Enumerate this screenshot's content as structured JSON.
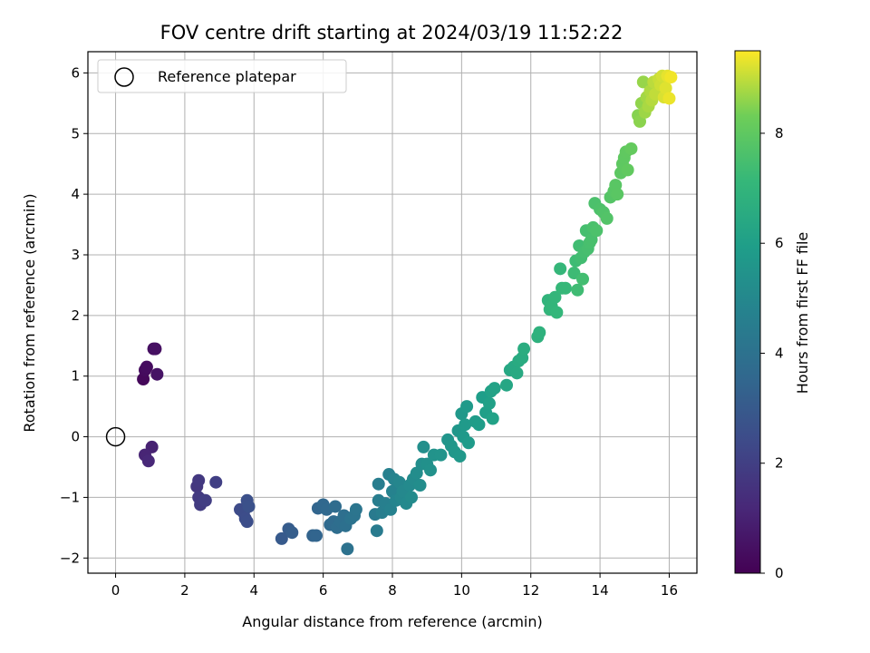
{
  "chart_data": {
    "type": "scatter",
    "title": "FOV centre drift starting at 2024/03/19 11:52:22",
    "xlabel": "Angular distance from reference (arcmin)",
    "ylabel": "Rotation from reference (arcmin)",
    "xlim": [
      -0.8,
      16.8
    ],
    "ylim": [
      -2.25,
      6.35
    ],
    "xticks": [
      "0",
      "2",
      "4",
      "6",
      "8",
      "10",
      "12",
      "14",
      "16"
    ],
    "yticks": [
      "−2",
      "−1",
      "0",
      "1",
      "2",
      "3",
      "4",
      "5",
      "6"
    ],
    "grid": true,
    "colorscale": "viridis",
    "colorbar": {
      "label": "Hours from first FF file",
      "range": [
        0,
        9.5
      ],
      "ticks": [
        "0",
        "2",
        "4",
        "6",
        "8"
      ]
    },
    "legend": {
      "position": "top-left",
      "entries": [
        {
          "label": "Reference platepar",
          "marker": "open-circle"
        }
      ]
    },
    "reference": {
      "x": 0,
      "y": 0
    },
    "series": [
      {
        "points": [
          {
            "x": 0.8,
            "y": 0.95,
            "h": 0.2
          },
          {
            "x": 0.85,
            "y": 1.1,
            "h": 0.3
          },
          {
            "x": 0.9,
            "y": 1.15,
            "h": 0.35
          },
          {
            "x": 1.1,
            "y": 1.45,
            "h": 0.4
          },
          {
            "x": 1.15,
            "y": 1.45,
            "h": 0.45
          },
          {
            "x": 1.2,
            "y": 1.03,
            "h": 0.55
          },
          {
            "x": 1.05,
            "y": -0.17,
            "h": 1.0
          },
          {
            "x": 0.85,
            "y": -0.3,
            "h": 1.1
          },
          {
            "x": 0.95,
            "y": -0.4,
            "h": 1.2
          },
          {
            "x": 2.35,
            "y": -0.82,
            "h": 1.7
          },
          {
            "x": 2.4,
            "y": -0.72,
            "h": 1.75
          },
          {
            "x": 2.4,
            "y": -1.0,
            "h": 1.8
          },
          {
            "x": 2.45,
            "y": -1.12,
            "h": 1.85
          },
          {
            "x": 2.55,
            "y": -1.05,
            "h": 1.9
          },
          {
            "x": 2.6,
            "y": -1.05,
            "h": 1.95
          },
          {
            "x": 2.9,
            "y": -0.75,
            "h": 2.0
          },
          {
            "x": 3.6,
            "y": -1.2,
            "h": 2.4
          },
          {
            "x": 3.7,
            "y": -1.25,
            "h": 2.45
          },
          {
            "x": 3.75,
            "y": -1.35,
            "h": 2.5
          },
          {
            "x": 3.8,
            "y": -1.4,
            "h": 2.55
          },
          {
            "x": 3.8,
            "y": -1.05,
            "h": 2.6
          },
          {
            "x": 3.85,
            "y": -1.15,
            "h": 2.65
          },
          {
            "x": 4.8,
            "y": -1.68,
            "h": 3.0
          },
          {
            "x": 5.0,
            "y": -1.52,
            "h": 3.1
          },
          {
            "x": 5.1,
            "y": -1.58,
            "h": 3.15
          },
          {
            "x": 5.7,
            "y": -1.63,
            "h": 3.4
          },
          {
            "x": 5.8,
            "y": -1.63,
            "h": 3.45
          },
          {
            "x": 5.85,
            "y": -1.18,
            "h": 3.5
          },
          {
            "x": 6.0,
            "y": -1.12,
            "h": 3.55
          },
          {
            "x": 6.1,
            "y": -1.2,
            "h": 3.6
          },
          {
            "x": 6.2,
            "y": -1.45,
            "h": 3.65
          },
          {
            "x": 6.3,
            "y": -1.4,
            "h": 3.7
          },
          {
            "x": 6.35,
            "y": -1.15,
            "h": 3.75
          },
          {
            "x": 6.4,
            "y": -1.5,
            "h": 3.8
          },
          {
            "x": 6.5,
            "y": -1.4,
            "h": 3.85
          },
          {
            "x": 6.6,
            "y": -1.3,
            "h": 3.9
          },
          {
            "x": 6.65,
            "y": -1.47,
            "h": 3.95
          },
          {
            "x": 6.7,
            "y": -1.85,
            "h": 4.0
          },
          {
            "x": 6.8,
            "y": -1.35,
            "h": 4.05
          },
          {
            "x": 6.9,
            "y": -1.3,
            "h": 4.1
          },
          {
            "x": 6.95,
            "y": -1.2,
            "h": 4.15
          },
          {
            "x": 7.5,
            "y": -1.28,
            "h": 4.4
          },
          {
            "x": 7.55,
            "y": -1.55,
            "h": 4.45
          },
          {
            "x": 7.6,
            "y": -1.05,
            "h": 4.5
          },
          {
            "x": 7.6,
            "y": -0.78,
            "h": 4.5
          },
          {
            "x": 7.7,
            "y": -1.25,
            "h": 4.55
          },
          {
            "x": 7.8,
            "y": -1.1,
            "h": 4.6
          },
          {
            "x": 7.9,
            "y": -0.62,
            "h": 4.65
          },
          {
            "x": 7.95,
            "y": -1.2,
            "h": 4.7
          },
          {
            "x": 8.0,
            "y": -0.9,
            "h": 4.75
          },
          {
            "x": 8.05,
            "y": -0.7,
            "h": 4.8
          },
          {
            "x": 8.1,
            "y": -1.05,
            "h": 4.85
          },
          {
            "x": 8.2,
            "y": -0.75,
            "h": 4.9
          },
          {
            "x": 8.25,
            "y": -1.0,
            "h": 4.95
          },
          {
            "x": 8.3,
            "y": -0.9,
            "h": 5.0
          },
          {
            "x": 8.4,
            "y": -1.1,
            "h": 5.05
          },
          {
            "x": 8.5,
            "y": -0.8,
            "h": 5.1
          },
          {
            "x": 8.55,
            "y": -1.0,
            "h": 5.12
          },
          {
            "x": 8.6,
            "y": -0.7,
            "h": 5.15
          },
          {
            "x": 8.7,
            "y": -0.6,
            "h": 5.2
          },
          {
            "x": 8.8,
            "y": -0.8,
            "h": 5.22
          },
          {
            "x": 8.85,
            "y": -0.45,
            "h": 5.25
          },
          {
            "x": 8.9,
            "y": -0.17,
            "h": 5.3
          },
          {
            "x": 9.0,
            "y": -0.45,
            "h": 5.35
          },
          {
            "x": 9.1,
            "y": -0.55,
            "h": 5.4
          },
          {
            "x": 9.2,
            "y": -0.3,
            "h": 5.45
          },
          {
            "x": 9.4,
            "y": -0.3,
            "h": 5.5
          },
          {
            "x": 9.6,
            "y": -0.05,
            "h": 5.55
          },
          {
            "x": 9.7,
            "y": -0.15,
            "h": 5.6
          },
          {
            "x": 9.8,
            "y": -0.25,
            "h": 5.62
          },
          {
            "x": 9.9,
            "y": 0.1,
            "h": 5.65
          },
          {
            "x": 9.95,
            "y": -0.32,
            "h": 5.68
          },
          {
            "x": 10.0,
            "y": 0.38,
            "h": 5.7
          },
          {
            "x": 10.05,
            "y": 0.0,
            "h": 5.72
          },
          {
            "x": 10.1,
            "y": 0.2,
            "h": 5.75
          },
          {
            "x": 10.15,
            "y": 0.5,
            "h": 5.78
          },
          {
            "x": 10.2,
            "y": -0.1,
            "h": 5.8
          },
          {
            "x": 10.4,
            "y": 0.25,
            "h": 5.85
          },
          {
            "x": 10.5,
            "y": 0.2,
            "h": 5.9
          },
          {
            "x": 10.6,
            "y": 0.65,
            "h": 5.95
          },
          {
            "x": 10.7,
            "y": 0.4,
            "h": 6.0
          },
          {
            "x": 10.8,
            "y": 0.55,
            "h": 6.05
          },
          {
            "x": 10.85,
            "y": 0.75,
            "h": 6.1
          },
          {
            "x": 10.9,
            "y": 0.3,
            "h": 6.12
          },
          {
            "x": 10.95,
            "y": 0.8,
            "h": 6.15
          },
          {
            "x": 11.3,
            "y": 0.85,
            "h": 6.3
          },
          {
            "x": 11.4,
            "y": 1.1,
            "h": 6.35
          },
          {
            "x": 11.5,
            "y": 1.15,
            "h": 6.4
          },
          {
            "x": 11.6,
            "y": 1.05,
            "h": 6.45
          },
          {
            "x": 11.65,
            "y": 1.25,
            "h": 6.5
          },
          {
            "x": 11.75,
            "y": 1.3,
            "h": 6.55
          },
          {
            "x": 11.8,
            "y": 1.45,
            "h": 6.6
          },
          {
            "x": 12.2,
            "y": 1.65,
            "h": 6.8
          },
          {
            "x": 12.25,
            "y": 1.72,
            "h": 6.82
          },
          {
            "x": 12.5,
            "y": 2.25,
            "h": 6.95
          },
          {
            "x": 12.55,
            "y": 2.1,
            "h": 7.0
          },
          {
            "x": 12.6,
            "y": 2.15,
            "h": 7.02
          },
          {
            "x": 12.7,
            "y": 2.3,
            "h": 7.05
          },
          {
            "x": 12.75,
            "y": 2.05,
            "h": 7.08
          },
          {
            "x": 12.85,
            "y": 2.77,
            "h": 7.1
          },
          {
            "x": 12.9,
            "y": 2.45,
            "h": 7.12
          },
          {
            "x": 13.0,
            "y": 2.45,
            "h": 7.15
          },
          {
            "x": 13.25,
            "y": 2.7,
            "h": 7.3
          },
          {
            "x": 13.3,
            "y": 2.9,
            "h": 7.32
          },
          {
            "x": 13.35,
            "y": 2.42,
            "h": 7.35
          },
          {
            "x": 13.4,
            "y": 3.15,
            "h": 7.38
          },
          {
            "x": 13.45,
            "y": 2.95,
            "h": 7.4
          },
          {
            "x": 13.5,
            "y": 2.6,
            "h": 7.42
          },
          {
            "x": 13.55,
            "y": 3.05,
            "h": 7.45
          },
          {
            "x": 13.6,
            "y": 3.4,
            "h": 7.48
          },
          {
            "x": 13.65,
            "y": 3.1,
            "h": 7.5
          },
          {
            "x": 13.7,
            "y": 3.2,
            "h": 7.52
          },
          {
            "x": 13.75,
            "y": 3.25,
            "h": 7.55
          },
          {
            "x": 13.8,
            "y": 3.45,
            "h": 7.58
          },
          {
            "x": 13.85,
            "y": 3.85,
            "h": 7.6
          },
          {
            "x": 13.9,
            "y": 3.4,
            "h": 7.62
          },
          {
            "x": 14.0,
            "y": 3.75,
            "h": 7.65
          },
          {
            "x": 14.1,
            "y": 3.7,
            "h": 7.7
          },
          {
            "x": 14.2,
            "y": 3.6,
            "h": 7.75
          },
          {
            "x": 14.3,
            "y": 3.95,
            "h": 7.8
          },
          {
            "x": 14.4,
            "y": 4.05,
            "h": 7.85
          },
          {
            "x": 14.45,
            "y": 4.15,
            "h": 7.88
          },
          {
            "x": 14.5,
            "y": 4.0,
            "h": 7.9
          },
          {
            "x": 14.6,
            "y": 4.35,
            "h": 7.95
          },
          {
            "x": 14.65,
            "y": 4.5,
            "h": 7.98
          },
          {
            "x": 14.7,
            "y": 4.6,
            "h": 8.0
          },
          {
            "x": 14.75,
            "y": 4.7,
            "h": 8.02
          },
          {
            "x": 14.8,
            "y": 4.4,
            "h": 8.05
          },
          {
            "x": 14.9,
            "y": 4.75,
            "h": 8.1
          },
          {
            "x": 15.1,
            "y": 5.3,
            "h": 8.5
          },
          {
            "x": 15.15,
            "y": 5.2,
            "h": 8.55
          },
          {
            "x": 15.2,
            "y": 5.5,
            "h": 8.6
          },
          {
            "x": 15.25,
            "y": 5.85,
            "h": 8.65
          },
          {
            "x": 15.3,
            "y": 5.35,
            "h": 8.7
          },
          {
            "x": 15.35,
            "y": 5.6,
            "h": 8.75
          },
          {
            "x": 15.4,
            "y": 5.45,
            "h": 8.8
          },
          {
            "x": 15.45,
            "y": 5.7,
            "h": 8.85
          },
          {
            "x": 15.5,
            "y": 5.55,
            "h": 8.9
          },
          {
            "x": 15.55,
            "y": 5.85,
            "h": 8.95
          },
          {
            "x": 15.6,
            "y": 5.65,
            "h": 9.0
          },
          {
            "x": 15.7,
            "y": 5.9,
            "h": 9.05
          },
          {
            "x": 15.75,
            "y": 5.8,
            "h": 9.1
          },
          {
            "x": 15.8,
            "y": 5.95,
            "h": 9.15
          },
          {
            "x": 15.85,
            "y": 5.6,
            "h": 9.2
          },
          {
            "x": 15.9,
            "y": 5.75,
            "h": 9.25
          },
          {
            "x": 15.95,
            "y": 5.95,
            "h": 9.3
          },
          {
            "x": 16.0,
            "y": 5.58,
            "h": 9.35
          },
          {
            "x": 16.05,
            "y": 5.93,
            "h": 9.4
          }
        ]
      }
    ]
  }
}
